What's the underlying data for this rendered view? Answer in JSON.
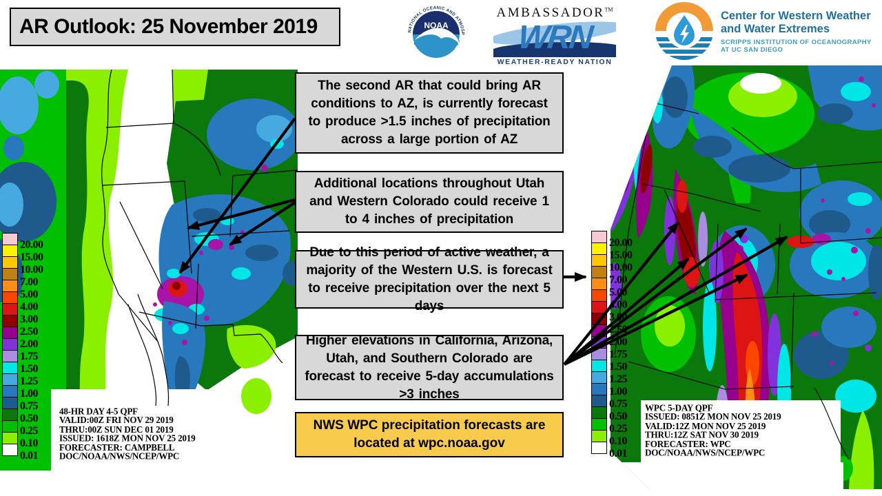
{
  "title": "AR Outlook: 25 November 2019",
  "logos": {
    "noaa": {
      "ring_top": "NATIONAL OCEANIC AND ATMOSPHERIC ADMINISTRATION",
      "ring_bottom": "U.S. DEPARTMENT OF COMMERCE",
      "center": "NOAA"
    },
    "wrn": {
      "title": "AMBASSADOR",
      "tm": "TM",
      "acronym": "WRN",
      "tagline": "WEATHER-READY NATION"
    },
    "cw3e": {
      "name_line1": "Center for Western Weather",
      "name_line2": "and Water Extremes",
      "sub_line1": "SCRIPPS INSTITUTION OF OCEANOGRAPHY",
      "sub_line2": "AT UC SAN DIEGO"
    }
  },
  "legend": {
    "values": [
      "20.00",
      "15.00",
      "10.00",
      "7.00",
      "5.00",
      "4.00",
      "3.00",
      "2.50",
      "2.00",
      "1.75",
      "1.50",
      "1.25",
      "1.00",
      "0.75",
      "0.50",
      "0.25",
      "0.10",
      "0.01"
    ],
    "colors": [
      "#F5C8D2",
      "#FFF200",
      "#FFC800",
      "#BE8214",
      "#FF8C14",
      "#FA4600",
      "#DC1414",
      "#8C0000",
      "#96008C",
      "#8232DC",
      "#AA8CE1",
      "#00E6E6",
      "#46AAE1",
      "#2878BE",
      "#1E5A8C",
      "#0A780A",
      "#00C000",
      "#8AF000",
      "#FFFFFF"
    ]
  },
  "left_map": {
    "caption": [
      "48-HR DAY 4-5 QPF",
      "VALID:00Z FRI NOV 29 2019",
      "THRU:00Z SUN DEC 01 2019",
      "ISSUED: 1618Z MON NOV 25 2019",
      "FORECASTER: CAMPBELL",
      "DOC/NOAA/NWS/NCEP/WPC"
    ]
  },
  "right_map": {
    "caption": [
      "WPC 5-DAY QPF",
      "ISSUED: 0851Z MON NOV 25 2019",
      "VALID:12Z MON NOV 25 2019",
      "THRU:12Z SAT NOV 30 2019",
      "FORECASTER: WPC",
      "DOC/NOAA/NWS/NCEP/WPC"
    ]
  },
  "annotations": [
    {
      "text": "The second AR that could bring AR conditions to AZ, is currently forecast to produce >1.5 inches of precipitation across a large portion of AZ"
    },
    {
      "text": "Additional locations throughout Utah and Western Colorado could receive 1 to 4 inches of precipitation"
    },
    {
      "text": "Due to this period of active weather, a majority of the Western U.S. is forecast to receive precipitation over the next 5 days"
    },
    {
      "text": "Higher elevations in California, Arizona, Utah, and Southern Colorado are forecast to receive 5-day accumulations >3 inches"
    }
  ],
  "footer_note": {
    "text": "NWS WPC precipitation forecasts are located at wpc.noaa.gov"
  },
  "colors": {
    "note_bg": "#D8D8D8",
    "footer_bg": "#F8CB4D",
    "arrow": "#000000"
  }
}
